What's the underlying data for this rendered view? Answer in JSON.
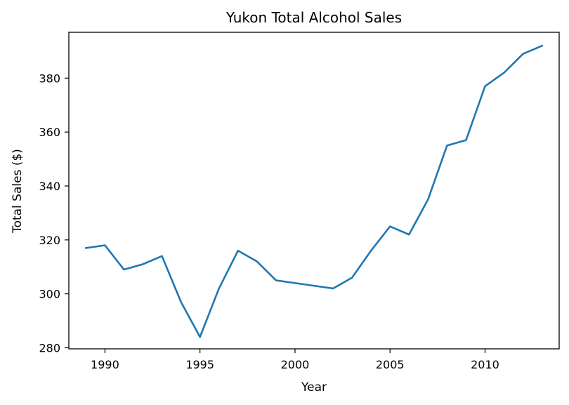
{
  "chart_data": {
    "type": "line",
    "title": "Yukon Total Alcohol Sales",
    "xlabel": "Year",
    "ylabel": "Total Sales ($)",
    "xlim": [
      1988.1,
      2013.9
    ],
    "ylim": [
      279.6,
      397.0
    ],
    "xticks": [
      1990,
      1995,
      2000,
      2005,
      2010
    ],
    "yticks": [
      280,
      300,
      320,
      340,
      360,
      380
    ],
    "grid": false,
    "color": "#1f77b4",
    "series": [
      {
        "x": [
          1989,
          1990,
          1991,
          1992,
          1993,
          1994,
          1995,
          1996,
          1997,
          1998,
          1999,
          2000,
          2001,
          2002,
          2003,
          2004,
          2005,
          2006,
          2007,
          2008,
          2009,
          2010,
          2011,
          2012,
          2013
        ],
        "y": [
          317,
          318,
          309,
          311,
          314,
          297,
          284,
          302,
          316,
          312,
          305,
          304,
          303,
          302,
          306,
          316,
          325,
          322,
          335,
          355,
          357,
          377,
          382,
          389,
          392
        ]
      }
    ]
  }
}
